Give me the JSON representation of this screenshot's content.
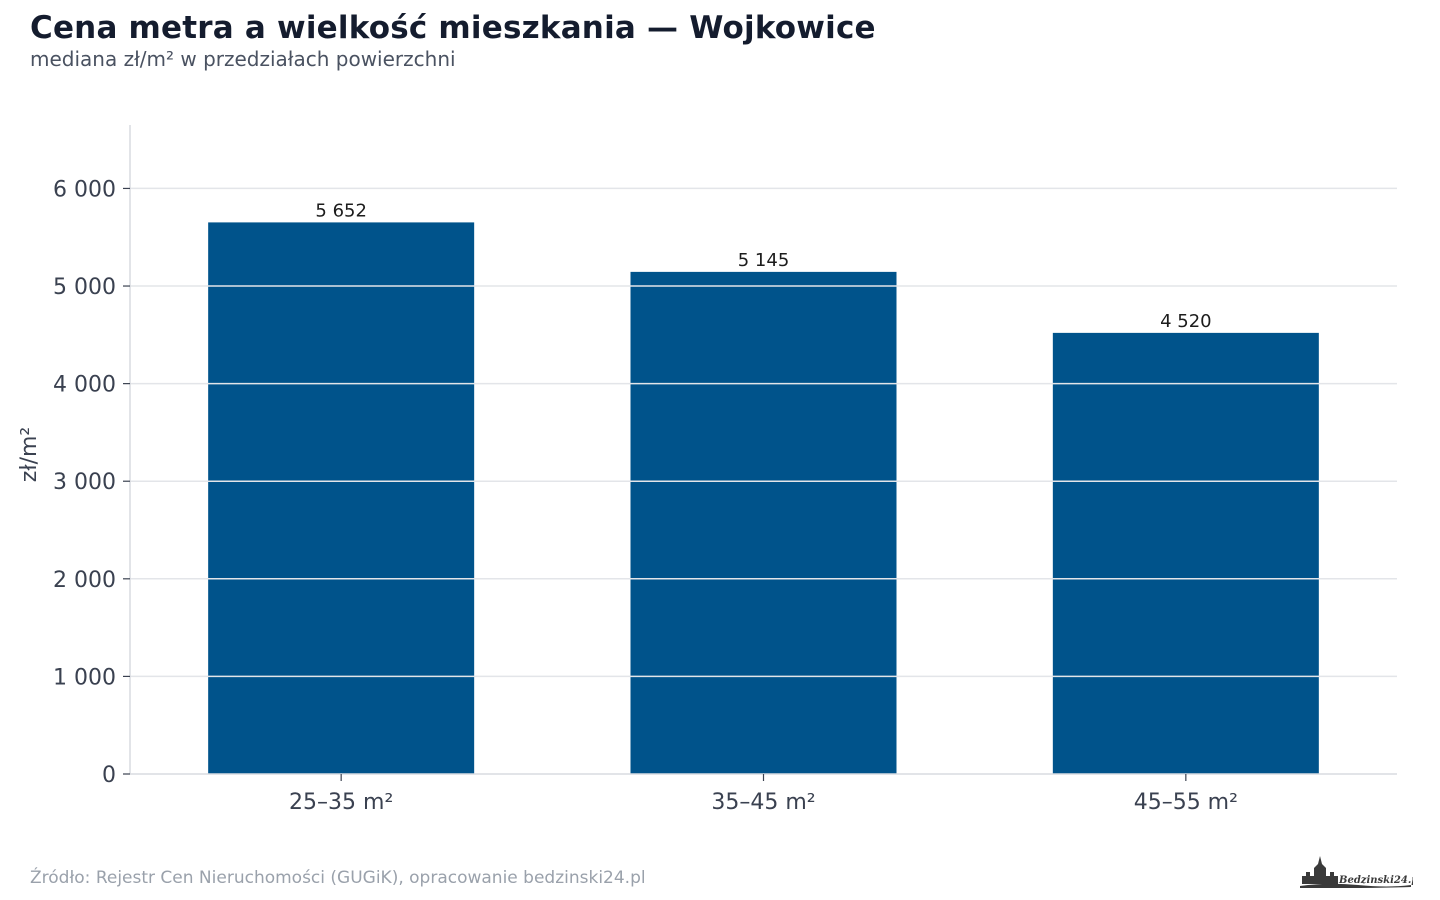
{
  "title": "Cena metra a wielkość mieszkania — Wojkowice",
  "subtitle": "mediana zł/m² w przedziałach powierzchni",
  "source": "Źródło: Rejestr Cen Nieruchomości (GUGiK), opracowanie bedzinski24.pl",
  "logo_text": "Bedzinski24.pl",
  "colors": {
    "bar": "#00538b",
    "grid": "#e3e5e9",
    "axis": "#d9dce1",
    "tick_text": "#3a4150",
    "label_text": "#1c1c1c"
  },
  "chart_data": {
    "type": "bar",
    "categories": [
      "25–35 m²",
      "35–45 m²",
      "45–55 m²"
    ],
    "values": [
      5652,
      5145,
      4520
    ],
    "value_labels": [
      "5 652",
      "5 145",
      "4 520"
    ],
    "ylabel": "zł/m²",
    "xlabel": "",
    "ylim": [
      0,
      6650
    ],
    "yticks": [
      0,
      1000,
      2000,
      3000,
      4000,
      5000,
      6000
    ],
    "ytick_labels": [
      "0",
      "1 000",
      "2 000",
      "3 000",
      "4 000",
      "5 000",
      "6 000"
    ],
    "grid": true
  }
}
